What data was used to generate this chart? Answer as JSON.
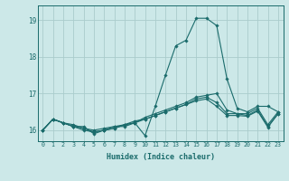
{
  "title": "",
  "xlabel": "Humidex (Indice chaleur)",
  "bg_color": "#cce8e8",
  "grid_color": "#aacccc",
  "line_color": "#1a6b6b",
  "xlim": [
    -0.5,
    23.5
  ],
  "ylim": [
    15.7,
    19.4
  ],
  "yticks": [
    16,
    17,
    18,
    19
  ],
  "xticks": [
    0,
    1,
    2,
    3,
    4,
    5,
    6,
    7,
    8,
    9,
    10,
    11,
    12,
    13,
    14,
    15,
    16,
    17,
    18,
    19,
    20,
    21,
    22,
    23
  ],
  "series": [
    [
      16.0,
      16.3,
      16.2,
      16.1,
      16.1,
      15.9,
      16.0,
      16.1,
      16.1,
      16.2,
      15.85,
      16.65,
      17.5,
      18.3,
      18.45,
      19.05,
      19.05,
      18.85,
      17.4,
      16.6,
      16.5,
      16.65,
      16.65,
      16.5
    ],
    [
      16.0,
      16.3,
      16.2,
      16.15,
      16.05,
      16.0,
      16.05,
      16.1,
      16.15,
      16.2,
      16.35,
      16.45,
      16.55,
      16.65,
      16.75,
      16.9,
      16.95,
      17.0,
      16.55,
      16.45,
      16.45,
      16.6,
      16.15,
      16.5
    ],
    [
      16.0,
      16.3,
      16.2,
      16.1,
      16.05,
      15.95,
      16.0,
      16.05,
      16.15,
      16.25,
      16.3,
      16.4,
      16.5,
      16.6,
      16.7,
      16.85,
      16.9,
      16.75,
      16.45,
      16.45,
      16.4,
      16.55,
      16.1,
      16.45
    ],
    [
      16.0,
      16.3,
      16.2,
      16.1,
      16.0,
      15.95,
      16.0,
      16.05,
      16.15,
      16.2,
      16.3,
      16.4,
      16.5,
      16.6,
      16.7,
      16.8,
      16.85,
      16.65,
      16.4,
      16.4,
      16.38,
      16.52,
      16.08,
      16.45
    ]
  ]
}
